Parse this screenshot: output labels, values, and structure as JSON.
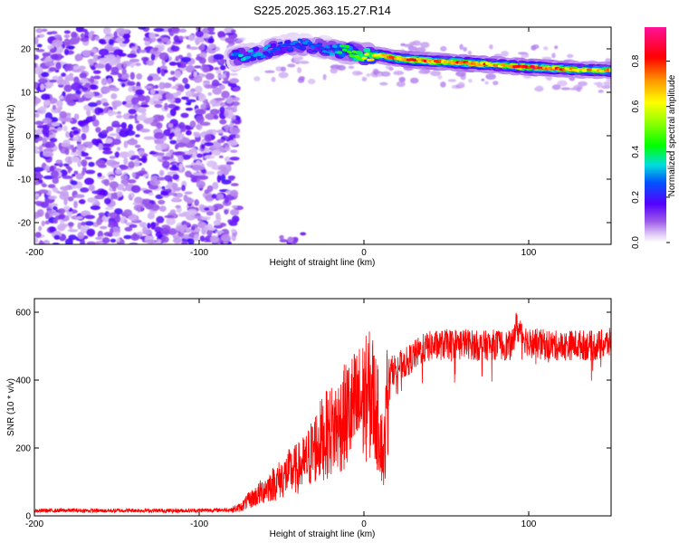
{
  "title": "S225.2025.363.15.27.R14",
  "chart_data": [
    {
      "type": "heatmap",
      "name": "spectrogram",
      "xlabel": "Height of straight line (km)",
      "ylabel": "Frequency (Hz)",
      "xlim": [
        -200,
        150
      ],
      "ylim": [
        -25,
        25
      ],
      "xticks": [
        -200,
        -100,
        0,
        100
      ],
      "yticks": [
        -20,
        -10,
        0,
        10,
        20
      ],
      "noise_region_x": [
        -200,
        -80
      ],
      "ridge": {
        "x": [
          -80,
          -70,
          -60,
          -50,
          -40,
          -30,
          -20,
          -10,
          0,
          10,
          20,
          30,
          40,
          50,
          60,
          70,
          80,
          90,
          100,
          110,
          120,
          130,
          140,
          150
        ],
        "freq": [
          18,
          18.5,
          19.5,
          20.5,
          21,
          20.5,
          20,
          19.5,
          18.5,
          18.5,
          17.8,
          17.5,
          17.2,
          17,
          16.8,
          16.5,
          16.3,
          16,
          15.8,
          15.6,
          15.4,
          15.2,
          15.1,
          15
        ],
        "amplitude": [
          0.3,
          0.35,
          0.3,
          0.25,
          0.3,
          0.25,
          0.3,
          0.45,
          0.6,
          0.7,
          0.75,
          0.85,
          0.8,
          0.7,
          0.85,
          0.8,
          0.7,
          0.75,
          0.85,
          0.8,
          0.75,
          0.7,
          0.7,
          0.7
        ]
      },
      "colorbar": {
        "label": "Normalized spectral amplitude",
        "ticks": [
          "0.0",
          "0.2",
          "0.4",
          "0.6",
          "0.8"
        ],
        "range": [
          0,
          0.95
        ]
      }
    },
    {
      "type": "line",
      "name": "snr",
      "xlabel": "Height of straight line (km)",
      "ylabel": "SNR (10 * v/v)",
      "xlim": [
        -200,
        150
      ],
      "ylim": [
        0,
        640
      ],
      "xticks": [
        -200,
        -100,
        0,
        100
      ],
      "yticks": [
        0,
        200,
        400,
        600
      ],
      "series": [
        {
          "name": "SNR",
          "color": "#ff0000",
          "x": [
            -200,
            -180,
            -160,
            -140,
            -120,
            -100,
            -80,
            -75,
            -70,
            -65,
            -60,
            -55,
            -50,
            -45,
            -40,
            -35,
            -30,
            -25,
            -20,
            -15,
            -10,
            -5,
            0,
            5,
            10,
            12,
            15,
            20,
            25,
            30,
            35,
            40,
            50,
            60,
            70,
            80,
            90,
            92,
            100,
            110,
            120,
            130,
            140,
            150
          ],
          "y": [
            15,
            16,
            15,
            16,
            15,
            16,
            18,
            25,
            45,
            60,
            80,
            95,
            110,
            130,
            140,
            160,
            200,
            230,
            250,
            270,
            300,
            320,
            340,
            360,
            250,
            160,
            420,
            440,
            450,
            470,
            490,
            500,
            505,
            510,
            500,
            505,
            500,
            560,
            510,
            505,
            500,
            505,
            500,
            510
          ]
        }
      ]
    }
  ]
}
